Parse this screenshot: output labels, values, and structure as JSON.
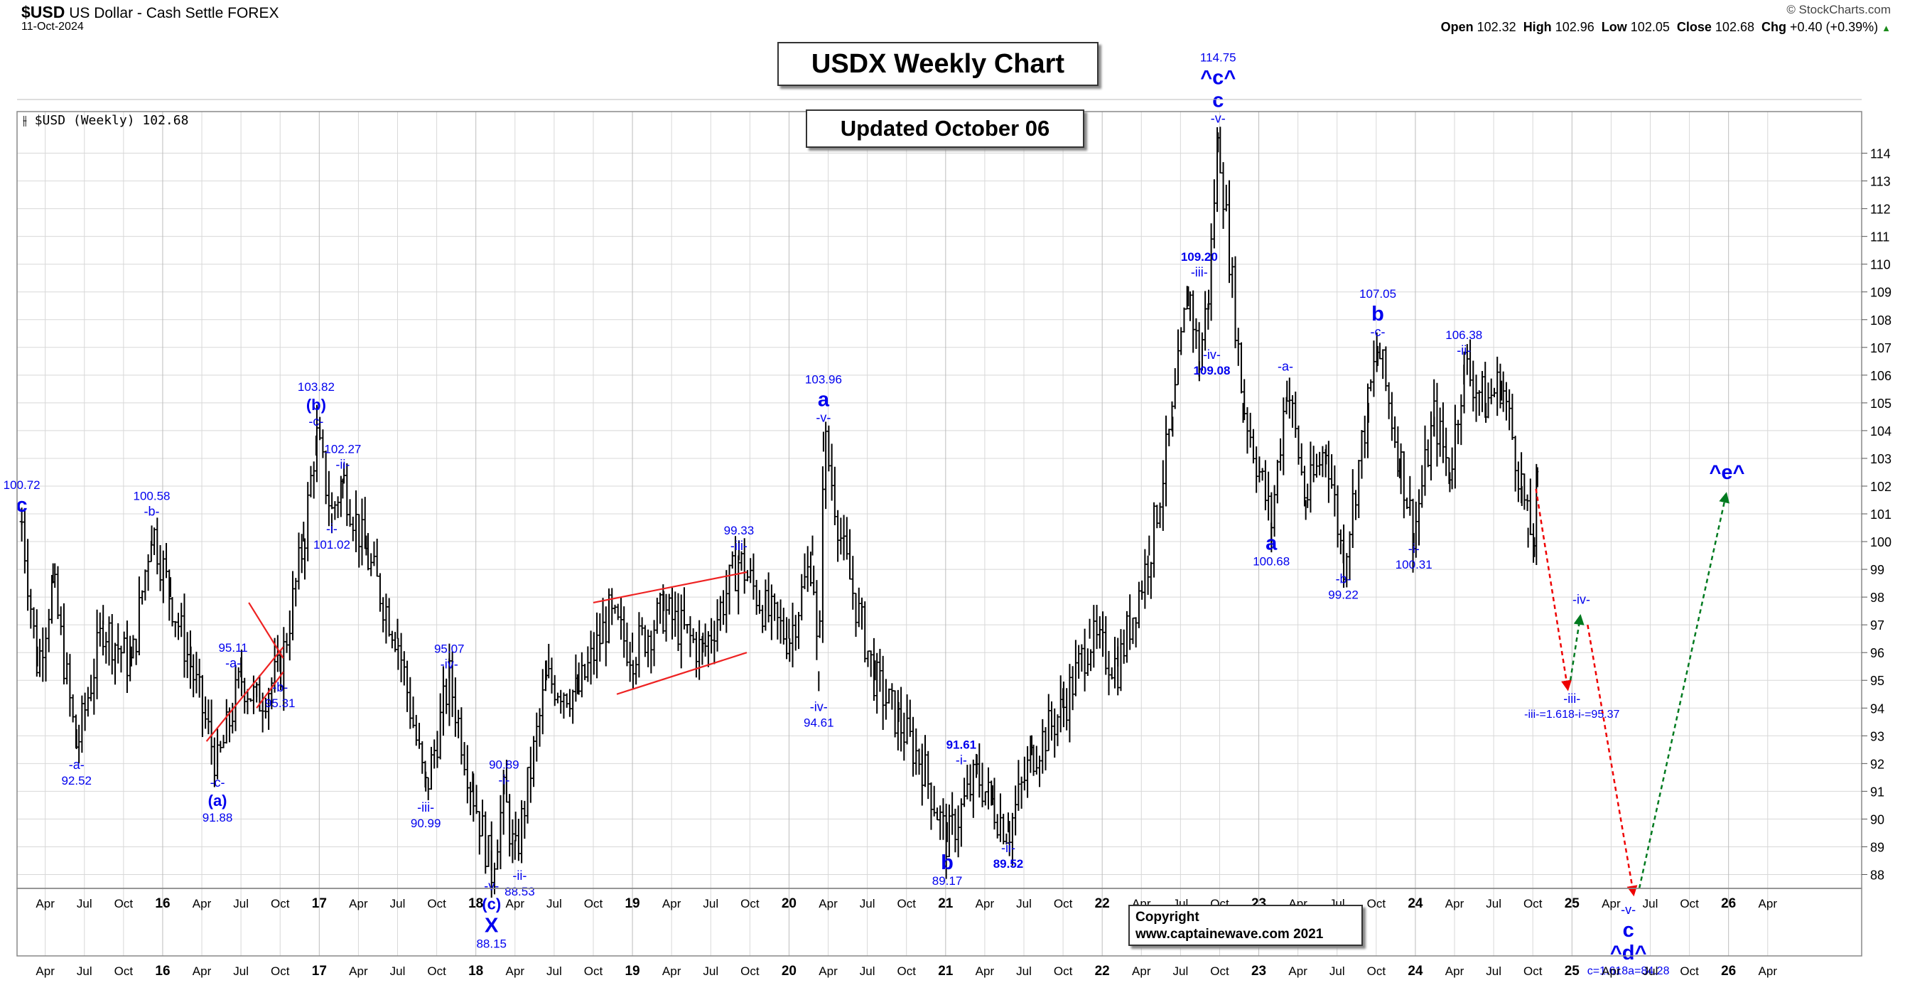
{
  "header": {
    "symbol": "$USD",
    "name": "US Dollar - Cash Settle",
    "exchange": "FOREX",
    "date": "11-Oct-2024",
    "source": "© StockCharts.com",
    "open_label": "Open",
    "open": "102.32",
    "high_label": "High",
    "high": "102.96",
    "low_label": "Low",
    "low": "102.05",
    "close_label": "Close",
    "close": "102.68",
    "chg_label": "Chg",
    "chg": "+0.40 (+0.39%)",
    "chg_arrow": "▲",
    "legend": "$USD (Weekly) 102.68"
  },
  "title_box": "USDX Weekly Chart",
  "updated_box": "Updated October 06",
  "copyright_box": {
    "line1": "Copyright",
    "line2": "www.captainewave.com 2021"
  },
  "colors": {
    "wave_label": "#0000ee",
    "channel": "#ee2222",
    "bars": "#000000",
    "grid": "#d8d8d8",
    "projection_down": "#ee0000",
    "projection_up": "#007a1f"
  },
  "chart_data": {
    "type": "ohlc",
    "title": "USDX Weekly Chart",
    "subtitle": "Updated October 06",
    "series_name": "$USD (Weekly)",
    "ylim": [
      87.5,
      115.5
    ],
    "y_ticks": [
      88,
      89,
      90,
      91,
      92,
      93,
      94,
      95,
      96,
      97,
      98,
      99,
      100,
      101,
      102,
      103,
      104,
      105,
      106,
      107,
      108,
      109,
      110,
      111,
      112,
      113,
      114
    ],
    "x_range": [
      2015.07,
      2026.85
    ],
    "x_ticks": [
      {
        "x": 2015.25,
        "label": "Apr"
      },
      {
        "x": 2015.5,
        "label": "Jul"
      },
      {
        "x": 2015.75,
        "label": "Oct"
      },
      {
        "x": 2016.0,
        "label": "16"
      },
      {
        "x": 2016.25,
        "label": "Apr"
      },
      {
        "x": 2016.5,
        "label": "Jul"
      },
      {
        "x": 2016.75,
        "label": "Oct"
      },
      {
        "x": 2017.0,
        "label": "17"
      },
      {
        "x": 2017.25,
        "label": "Apr"
      },
      {
        "x": 2017.5,
        "label": "Jul"
      },
      {
        "x": 2017.75,
        "label": "Oct"
      },
      {
        "x": 2018.0,
        "label": "18"
      },
      {
        "x": 2018.25,
        "label": "Apr"
      },
      {
        "x": 2018.5,
        "label": "Jul"
      },
      {
        "x": 2018.75,
        "label": "Oct"
      },
      {
        "x": 2019.0,
        "label": "19"
      },
      {
        "x": 2019.25,
        "label": "Apr"
      },
      {
        "x": 2019.5,
        "label": "Jul"
      },
      {
        "x": 2019.75,
        "label": "Oct"
      },
      {
        "x": 2020.0,
        "label": "20"
      },
      {
        "x": 2020.25,
        "label": "Apr"
      },
      {
        "x": 2020.5,
        "label": "Jul"
      },
      {
        "x": 2020.75,
        "label": "Oct"
      },
      {
        "x": 2021.0,
        "label": "21"
      },
      {
        "x": 2021.25,
        "label": "Apr"
      },
      {
        "x": 2021.5,
        "label": "Jul"
      },
      {
        "x": 2021.75,
        "label": "Oct"
      },
      {
        "x": 2022.0,
        "label": "22"
      },
      {
        "x": 2022.25,
        "label": "Apr"
      },
      {
        "x": 2022.5,
        "label": "Jul"
      },
      {
        "x": 2022.75,
        "label": "Oct"
      },
      {
        "x": 2023.0,
        "label": "23"
      },
      {
        "x": 2023.25,
        "label": "Apr"
      },
      {
        "x": 2023.5,
        "label": "Jul"
      },
      {
        "x": 2023.75,
        "label": "Oct"
      },
      {
        "x": 2024.0,
        "label": "24"
      },
      {
        "x": 2024.25,
        "label": "Apr"
      },
      {
        "x": 2024.5,
        "label": "Jul"
      },
      {
        "x": 2024.75,
        "label": "Oct"
      },
      {
        "x": 2025.0,
        "label": "25"
      },
      {
        "x": 2025.25,
        "label": "Apr"
      },
      {
        "x": 2025.5,
        "label": "Jul"
      },
      {
        "x": 2025.75,
        "label": "Oct"
      },
      {
        "x": 2026.0,
        "label": "26"
      },
      {
        "x": 2026.25,
        "label": "Apr"
      }
    ],
    "pivots": [
      {
        "x": 2015.1,
        "y": 100.72
      },
      {
        "x": 2015.2,
        "y": 95.5
      },
      {
        "x": 2015.3,
        "y": 98.5
      },
      {
        "x": 2015.45,
        "y": 92.52
      },
      {
        "x": 2015.62,
        "y": 97.0
      },
      {
        "x": 2015.8,
        "y": 95.5
      },
      {
        "x": 2015.93,
        "y": 100.58
      },
      {
        "x": 2016.05,
        "y": 98.0
      },
      {
        "x": 2016.18,
        "y": 95.5
      },
      {
        "x": 2016.35,
        "y": 91.88
      },
      {
        "x": 2016.5,
        "y": 95.11
      },
      {
        "x": 2016.6,
        "y": 94.2
      },
      {
        "x": 2016.75,
        "y": 95.31
      },
      {
        "x": 2016.9,
        "y": 100.0
      },
      {
        "x": 2016.98,
        "y": 103.82
      },
      {
        "x": 2017.08,
        "y": 101.02
      },
      {
        "x": 2017.15,
        "y": 102.27
      },
      {
        "x": 2017.3,
        "y": 99.5
      },
      {
        "x": 2017.5,
        "y": 96.5
      },
      {
        "x": 2017.68,
        "y": 90.99
      },
      {
        "x": 2017.83,
        "y": 95.07
      },
      {
        "x": 2017.98,
        "y": 91.0
      },
      {
        "x": 2018.1,
        "y": 88.15
      },
      {
        "x": 2018.18,
        "y": 90.89
      },
      {
        "x": 2018.25,
        "y": 88.53
      },
      {
        "x": 2018.45,
        "y": 95.0
      },
      {
        "x": 2018.65,
        "y": 94.5
      },
      {
        "x": 2018.85,
        "y": 97.3
      },
      {
        "x": 2019.0,
        "y": 96.0
      },
      {
        "x": 2019.2,
        "y": 97.5
      },
      {
        "x": 2019.45,
        "y": 96.0
      },
      {
        "x": 2019.68,
        "y": 99.33
      },
      {
        "x": 2019.85,
        "y": 97.5
      },
      {
        "x": 2020.0,
        "y": 96.5
      },
      {
        "x": 2020.15,
        "y": 99.5
      },
      {
        "x": 2020.19,
        "y": 94.61
      },
      {
        "x": 2020.22,
        "y": 103.96
      },
      {
        "x": 2020.35,
        "y": 99.5
      },
      {
        "x": 2020.55,
        "y": 95.0
      },
      {
        "x": 2020.7,
        "y": 93.5
      },
      {
        "x": 2020.85,
        "y": 92.0
      },
      {
        "x": 2021.01,
        "y": 89.17
      },
      {
        "x": 2021.2,
        "y": 91.61
      },
      {
        "x": 2021.3,
        "y": 90.5
      },
      {
        "x": 2021.4,
        "y": 89.52
      },
      {
        "x": 2021.55,
        "y": 92.3
      },
      {
        "x": 2021.75,
        "y": 94.0
      },
      {
        "x": 2021.92,
        "y": 96.5
      },
      {
        "x": 2022.1,
        "y": 95.5
      },
      {
        "x": 2022.3,
        "y": 99.5
      },
      {
        "x": 2022.45,
        "y": 104.5
      },
      {
        "x": 2022.55,
        "y": 109.2
      },
      {
        "x": 2022.62,
        "y": 106.5
      },
      {
        "x": 2022.68,
        "y": 109.08
      },
      {
        "x": 2022.74,
        "y": 114.75
      },
      {
        "x": 2022.9,
        "y": 105.0
      },
      {
        "x": 2023.08,
        "y": 100.68
      },
      {
        "x": 2023.18,
        "y": 105.8
      },
      {
        "x": 2023.3,
        "y": 101.5
      },
      {
        "x": 2023.43,
        "y": 103.5
      },
      {
        "x": 2023.54,
        "y": 99.22
      },
      {
        "x": 2023.7,
        "y": 105.0
      },
      {
        "x": 2023.76,
        "y": 107.05
      },
      {
        "x": 2023.9,
        "y": 103.0
      },
      {
        "x": 2023.99,
        "y": 100.31
      },
      {
        "x": 2024.12,
        "y": 104.5
      },
      {
        "x": 2024.22,
        "y": 102.5
      },
      {
        "x": 2024.31,
        "y": 106.38
      },
      {
        "x": 2024.45,
        "y": 105.0
      },
      {
        "x": 2024.55,
        "y": 105.8
      },
      {
        "x": 2024.68,
        "y": 102.0
      },
      {
        "x": 2024.72,
        "y": 100.5
      },
      {
        "x": 2024.76,
        "y": 100.16
      },
      {
        "x": 2024.78,
        "y": 102.68
      }
    ],
    "channels": [
      {
        "x1": 2016.28,
        "y1": 92.8,
        "x2": 2016.77,
        "y2": 96.2
      },
      {
        "x1": 2016.55,
        "y1": 97.8,
        "x2": 2016.77,
        "y2": 95.8
      },
      {
        "x1": 2016.6,
        "y1": 94.0,
        "x2": 2016.77,
        "y2": 95.3
      },
      {
        "x1": 2018.75,
        "y1": 97.8,
        "x2": 2019.73,
        "y2": 98.9
      },
      {
        "x1": 2018.9,
        "y1": 94.5,
        "x2": 2019.73,
        "y2": 96.0
      }
    ],
    "projections": [
      {
        "x1": 2024.77,
        "y1": 101.9,
        "x2": 2024.97,
        "y2": 94.8,
        "kind": "down"
      },
      {
        "x1": 2024.99,
        "y1": 95.0,
        "x2": 2025.05,
        "y2": 97.2,
        "kind": "up"
      },
      {
        "x1": 2025.1,
        "y1": 97.0,
        "x2": 2025.39,
        "y2": 87.4,
        "kind": "down"
      },
      {
        "x1": 2025.43,
        "y1": 87.5,
        "x2": 2025.98,
        "y2": 101.6,
        "kind": "up"
      }
    ],
    "annotations": [
      {
        "x": 2015.1,
        "y": 100.72,
        "lines": [
          {
            "t": "100.72",
            "s": "num"
          },
          {
            "t": "c",
            "s": "big"
          }
        ],
        "pos": "above"
      },
      {
        "x": 2015.45,
        "y": 92.52,
        "lines": [
          {
            "t": "-a-",
            "s": "tag"
          },
          {
            "t": "92.52",
            "s": "num"
          }
        ],
        "pos": "below"
      },
      {
        "x": 2015.93,
        "y": 100.58,
        "lines": [
          {
            "t": "100.58",
            "s": "num"
          },
          {
            "t": "-b-",
            "s": "tag"
          }
        ],
        "pos": "above"
      },
      {
        "x": 2016.35,
        "y": 91.88,
        "lines": [
          {
            "t": "-c-",
            "s": "tag"
          },
          {
            "t": "(a)",
            "s": "mid"
          },
          {
            "t": "91.88",
            "s": "num"
          }
        ],
        "pos": "below"
      },
      {
        "x": 2016.45,
        "y": 95.11,
        "lines": [
          {
            "t": "95.11",
            "s": "num"
          },
          {
            "t": "-a-",
            "s": "tag"
          }
        ],
        "pos": "above"
      },
      {
        "x": 2016.75,
        "y": 95.31,
        "lines": [
          {
            "t": "-b-",
            "s": "tag"
          },
          {
            "t": "95.31",
            "s": "num"
          }
        ],
        "pos": "below"
      },
      {
        "x": 2016.98,
        "y": 103.82,
        "lines": [
          {
            "t": "103.82",
            "s": "num"
          },
          {
            "t": "(b)",
            "s": "mid"
          },
          {
            "t": "-c-",
            "s": "tag"
          }
        ],
        "pos": "above"
      },
      {
        "x": 2017.15,
        "y": 102.27,
        "lines": [
          {
            "t": "102.27",
            "s": "num"
          },
          {
            "t": "-ii-",
            "s": "tag"
          }
        ],
        "pos": "above"
      },
      {
        "x": 2017.08,
        "y": 101.02,
        "lines": [
          {
            "t": "-i-",
            "s": "tag"
          },
          {
            "t": "101.02",
            "s": "num"
          }
        ],
        "pos": "below"
      },
      {
        "x": 2017.68,
        "y": 90.99,
        "lines": [
          {
            "t": "-iii-",
            "s": "tag"
          },
          {
            "t": "90.99",
            "s": "num"
          }
        ],
        "pos": "below"
      },
      {
        "x": 2017.83,
        "y": 95.07,
        "lines": [
          {
            "t": "95.07",
            "s": "num"
          },
          {
            "t": "-iv-",
            "s": "tag"
          }
        ],
        "pos": "above"
      },
      {
        "x": 2018.1,
        "y": 88.15,
        "lines": [
          {
            "t": "-v-",
            "s": "tag"
          },
          {
            "t": "(c)",
            "s": "mid"
          },
          {
            "t": "X",
            "s": "big"
          },
          {
            "t": "88.15",
            "s": "num"
          }
        ],
        "pos": "below"
      },
      {
        "x": 2018.18,
        "y": 90.89,
        "lines": [
          {
            "t": "90.89",
            "s": "num"
          },
          {
            "t": "-i-",
            "s": "tag"
          }
        ],
        "pos": "above"
      },
      {
        "x": 2018.28,
        "y": 88.53,
        "lines": [
          {
            "t": "-ii-",
            "s": "tag"
          },
          {
            "t": "88.53",
            "s": "num"
          }
        ],
        "pos": "below"
      },
      {
        "x": 2019.68,
        "y": 99.33,
        "lines": [
          {
            "t": "99.33",
            "s": "num"
          },
          {
            "t": "-iii-",
            "s": "tag"
          }
        ],
        "pos": "above"
      },
      {
        "x": 2020.22,
        "y": 103.96,
        "lines": [
          {
            "t": "103.96",
            "s": "num"
          },
          {
            "t": "a",
            "s": "big"
          },
          {
            "t": "-v-",
            "s": "tag"
          }
        ],
        "pos": "above"
      },
      {
        "x": 2020.19,
        "y": 94.61,
        "lines": [
          {
            "t": "-iv-",
            "s": "tag"
          },
          {
            "t": "94.61",
            "s": "num"
          }
        ],
        "pos": "below"
      },
      {
        "x": 2021.01,
        "y": 89.17,
        "lines": [
          {
            "t": "b",
            "s": "big"
          },
          {
            "t": "89.17",
            "s": "num"
          }
        ],
        "pos": "below"
      },
      {
        "x": 2021.1,
        "y": 91.61,
        "lines": [
          {
            "t": "91.61",
            "s": "numb"
          },
          {
            "t": "-i-",
            "s": "tag"
          }
        ],
        "pos": "above"
      },
      {
        "x": 2021.4,
        "y": 89.52,
        "lines": [
          {
            "t": "-ii-",
            "s": "tag"
          },
          {
            "t": "89.52",
            "s": "numb"
          }
        ],
        "pos": "below"
      },
      {
        "x": 2022.62,
        "y": 109.2,
        "lines": [
          {
            "t": "109.20",
            "s": "numb"
          },
          {
            "t": "-iii-",
            "s": "tag"
          }
        ],
        "pos": "above"
      },
      {
        "x": 2022.7,
        "y": 107.3,
        "lines": [
          {
            "t": "-iv-",
            "s": "tag"
          },
          {
            "t": "109.08",
            "s": "numb"
          }
        ],
        "pos": "below"
      },
      {
        "x": 2022.74,
        "y": 114.75,
        "lines": [
          {
            "t": "114.75",
            "s": "num"
          },
          {
            "t": "^c^",
            "s": "big"
          },
          {
            "t": "c",
            "s": "big"
          },
          {
            "t": "-v-",
            "s": "tag"
          }
        ],
        "pos": "above"
      },
      {
        "x": 2023.08,
        "y": 100.68,
        "lines": [
          {
            "t": "a",
            "s": "big"
          },
          {
            "t": "100.68",
            "s": "num"
          }
        ],
        "pos": "below"
      },
      {
        "x": 2023.17,
        "y": 105.8,
        "lines": [
          {
            "t": "-a-",
            "s": "tag"
          }
        ],
        "pos": "above"
      },
      {
        "x": 2023.54,
        "y": 99.22,
        "lines": [
          {
            "t": "-b-",
            "s": "tag"
          },
          {
            "t": "99.22",
            "s": "num"
          }
        ],
        "pos": "below"
      },
      {
        "x": 2023.76,
        "y": 107.05,
        "lines": [
          {
            "t": "107.05",
            "s": "num"
          },
          {
            "t": "b",
            "s": "big"
          },
          {
            "t": "-c-",
            "s": "tag"
          }
        ],
        "pos": "above"
      },
      {
        "x": 2023.99,
        "y": 100.31,
        "lines": [
          {
            "t": "-i-",
            "s": "tag"
          },
          {
            "t": "100.31",
            "s": "num"
          }
        ],
        "pos": "below"
      },
      {
        "x": 2024.31,
        "y": 106.38,
        "lines": [
          {
            "t": "106.38",
            "s": "num"
          },
          {
            "t": "-ii-",
            "s": "tag"
          }
        ],
        "pos": "above"
      },
      {
        "x": 2025.0,
        "y": 94.9,
        "lines": [
          {
            "t": "-iii-",
            "s": "tag"
          },
          {
            "t": "-iii-=1.618-i-=95.37",
            "s": "small"
          }
        ],
        "pos": "below"
      },
      {
        "x": 2025.06,
        "y": 97.4,
        "lines": [
          {
            "t": "-iv-",
            "s": "tag"
          }
        ],
        "pos": "above"
      },
      {
        "x": 2025.36,
        "y": 87.3,
        "lines": [
          {
            "t": "-v-",
            "s": "tag"
          },
          {
            "t": "c",
            "s": "big"
          },
          {
            "t": "^d^",
            "s": "big"
          },
          {
            "t": "c=1.618a=84.28",
            "s": "small"
          }
        ],
        "pos": "below"
      },
      {
        "x": 2025.99,
        "y": 101.9,
        "lines": [
          {
            "t": "^e^",
            "s": "big"
          }
        ],
        "pos": "above"
      }
    ]
  }
}
